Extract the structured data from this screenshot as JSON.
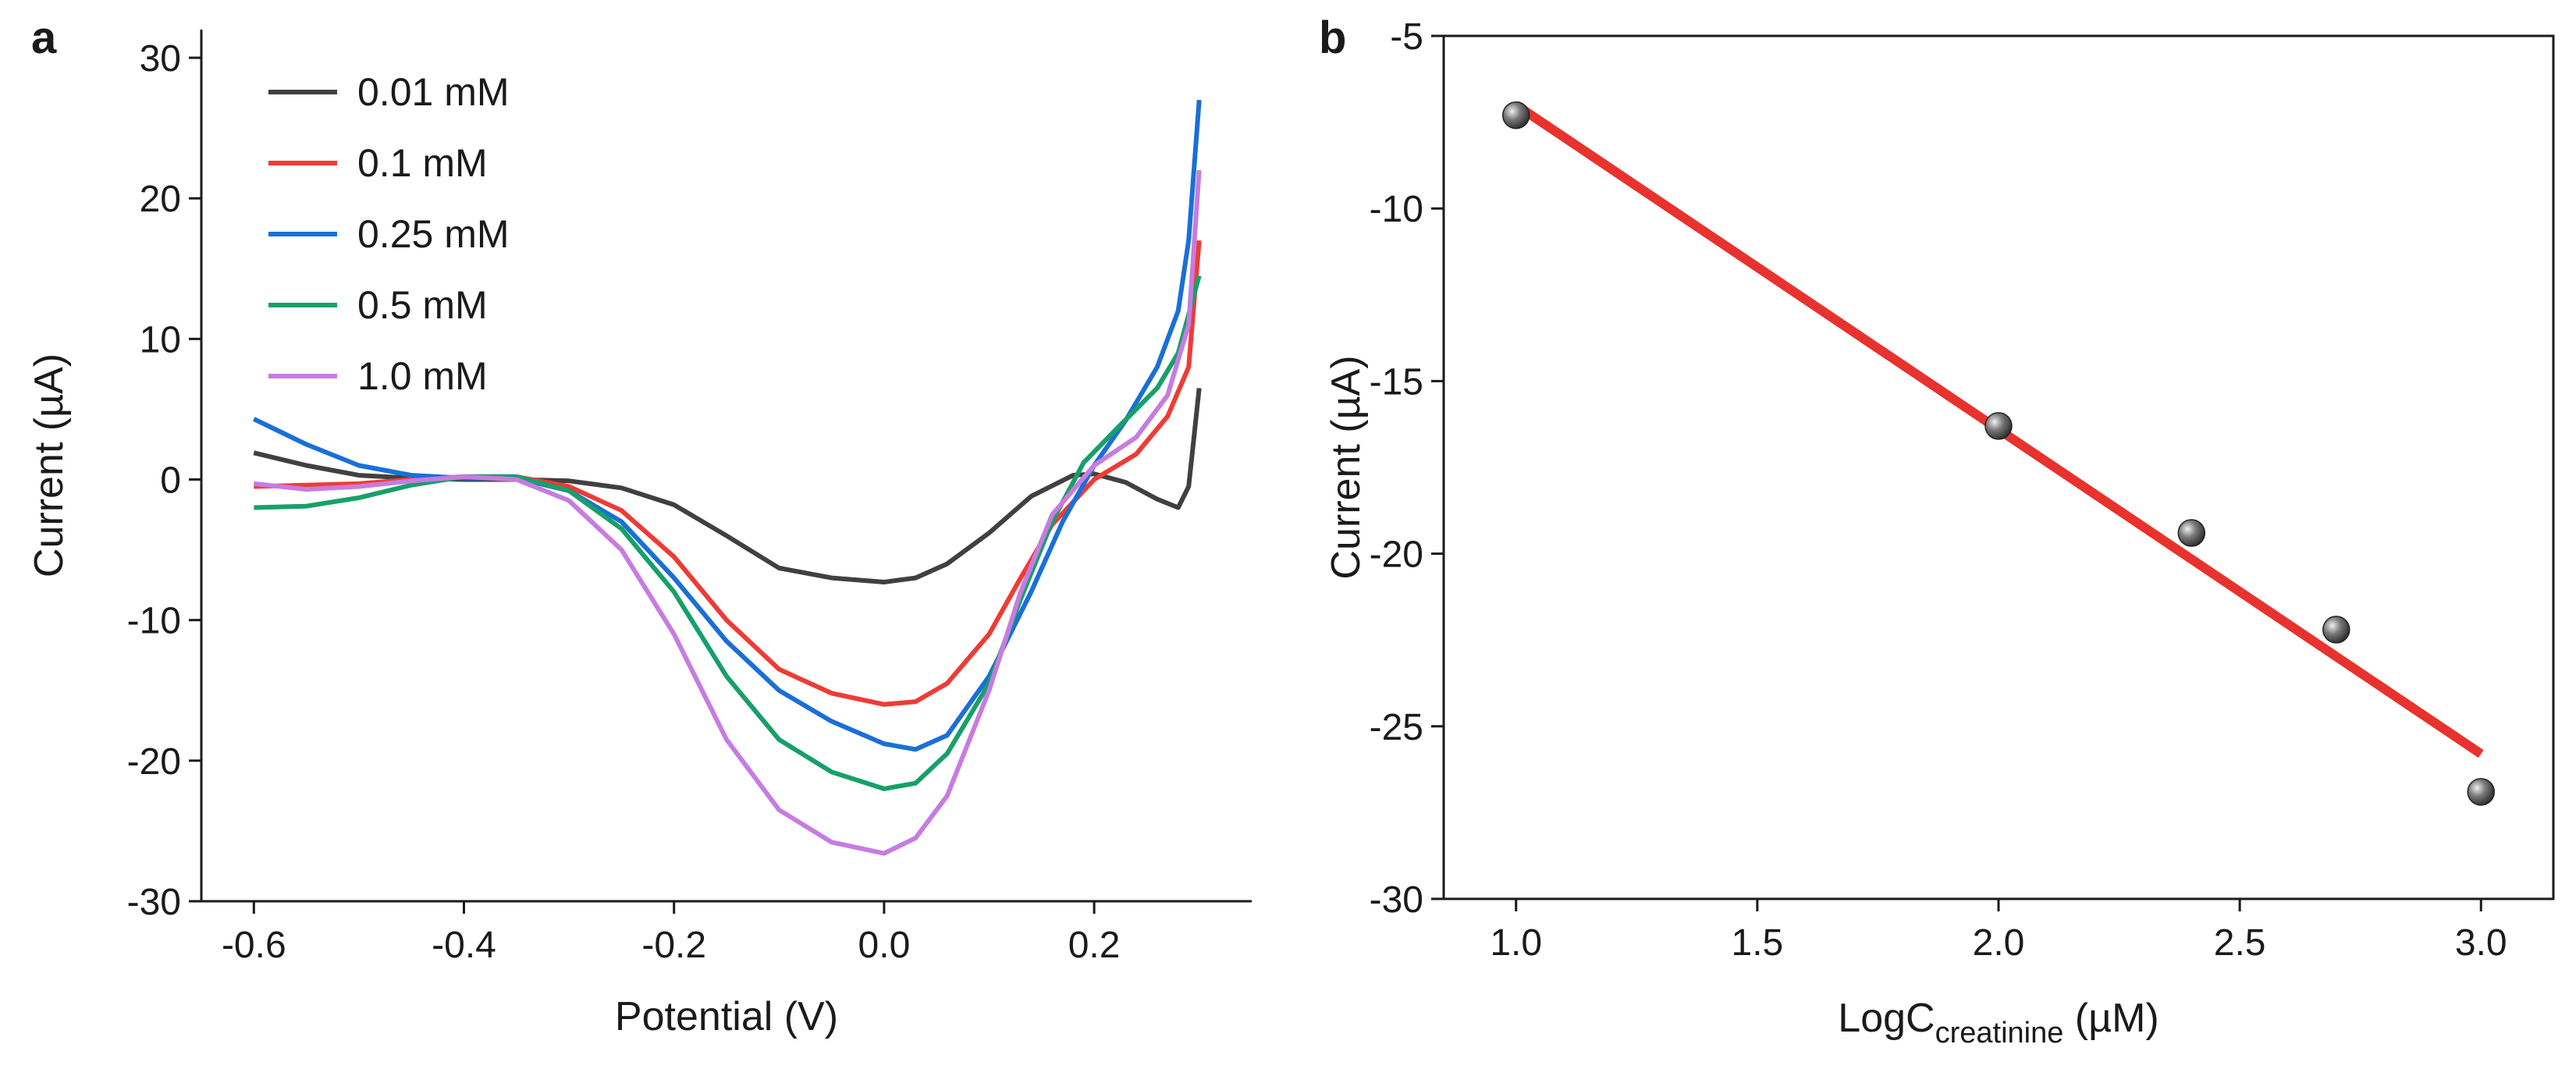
{
  "chart_data": [
    {
      "panel": "a",
      "type": "line",
      "xlabel": "Potential (V)",
      "ylabel": "Current (µA)",
      "xlim": [
        -0.65,
        0.35
      ],
      "ylim": [
        -30,
        32
      ],
      "x_ticks": [
        -0.6,
        -0.4,
        -0.2,
        0.0,
        0.2
      ],
      "x_tick_labels": [
        "-0.6",
        "-0.4",
        "-0.2",
        "0.0",
        "0.2"
      ],
      "y_ticks": [
        -30,
        -20,
        -10,
        0,
        10,
        20,
        30
      ],
      "y_tick_labels": [
        "-30",
        "-20",
        "-10",
        "0",
        "10",
        "20",
        "30"
      ],
      "legend_position": "top-left",
      "series": [
        {
          "name": "0.01 mM",
          "color": "#404040",
          "points": [
            [
              -0.6,
              1.9
            ],
            [
              -0.55,
              1.0
            ],
            [
              -0.5,
              0.3
            ],
            [
              -0.45,
              0.1
            ],
            [
              -0.4,
              0.0
            ],
            [
              -0.35,
              0.0
            ],
            [
              -0.3,
              -0.1
            ],
            [
              -0.25,
              -0.6
            ],
            [
              -0.2,
              -1.8
            ],
            [
              -0.15,
              -4.0
            ],
            [
              -0.1,
              -6.3
            ],
            [
              -0.05,
              -7.0
            ],
            [
              0.0,
              -7.3
            ],
            [
              0.03,
              -7.0
            ],
            [
              0.06,
              -6.0
            ],
            [
              0.1,
              -3.8
            ],
            [
              0.14,
              -1.2
            ],
            [
              0.18,
              0.3
            ],
            [
              0.2,
              0.4
            ],
            [
              0.23,
              -0.2
            ],
            [
              0.26,
              -1.4
            ],
            [
              0.28,
              -2.0
            ],
            [
              0.29,
              -0.5
            ],
            [
              0.295,
              3.0
            ],
            [
              0.3,
              6.5
            ]
          ]
        },
        {
          "name": "0.1 mM",
          "color": "#ef3b36",
          "points": [
            [
              -0.6,
              -0.5
            ],
            [
              -0.55,
              -0.4
            ],
            [
              -0.5,
              -0.3
            ],
            [
              -0.45,
              0.0
            ],
            [
              -0.4,
              0.2
            ],
            [
              -0.35,
              0.2
            ],
            [
              -0.3,
              -0.5
            ],
            [
              -0.25,
              -2.2
            ],
            [
              -0.2,
              -5.5
            ],
            [
              -0.15,
              -10.0
            ],
            [
              -0.1,
              -13.5
            ],
            [
              -0.05,
              -15.2
            ],
            [
              0.0,
              -16.0
            ],
            [
              0.03,
              -15.8
            ],
            [
              0.06,
              -14.5
            ],
            [
              0.1,
              -11.0
            ],
            [
              0.13,
              -7.0
            ],
            [
              0.16,
              -3.2
            ],
            [
              0.2,
              0.0
            ],
            [
              0.24,
              1.8
            ],
            [
              0.27,
              4.5
            ],
            [
              0.29,
              8.0
            ],
            [
              0.3,
              17.0
            ]
          ]
        },
        {
          "name": "0.25 mM",
          "color": "#1a6fd6",
          "points": [
            [
              -0.6,
              4.3
            ],
            [
              -0.55,
              2.5
            ],
            [
              -0.5,
              1.0
            ],
            [
              -0.45,
              0.3
            ],
            [
              -0.4,
              0.1
            ],
            [
              -0.35,
              0.1
            ],
            [
              -0.3,
              -0.8
            ],
            [
              -0.25,
              -3.0
            ],
            [
              -0.2,
              -7.0
            ],
            [
              -0.15,
              -11.5
            ],
            [
              -0.1,
              -15.0
            ],
            [
              -0.05,
              -17.2
            ],
            [
              0.0,
              -18.8
            ],
            [
              0.03,
              -19.2
            ],
            [
              0.06,
              -18.2
            ],
            [
              0.1,
              -14.0
            ],
            [
              0.14,
              -8.0
            ],
            [
              0.17,
              -3.0
            ],
            [
              0.2,
              1.0
            ],
            [
              0.23,
              4.2
            ],
            [
              0.26,
              8.0
            ],
            [
              0.28,
              12.0
            ],
            [
              0.29,
              17.0
            ],
            [
              0.3,
              27.0
            ]
          ]
        },
        {
          "name": "0.5 mM",
          "color": "#17a06a",
          "points": [
            [
              -0.6,
              -2.0
            ],
            [
              -0.55,
              -1.9
            ],
            [
              -0.5,
              -1.3
            ],
            [
              -0.45,
              -0.4
            ],
            [
              -0.4,
              0.2
            ],
            [
              -0.35,
              0.2
            ],
            [
              -0.3,
              -0.8
            ],
            [
              -0.25,
              -3.5
            ],
            [
              -0.2,
              -8.0
            ],
            [
              -0.15,
              -14.0
            ],
            [
              -0.1,
              -18.5
            ],
            [
              -0.05,
              -20.8
            ],
            [
              0.0,
              -22.0
            ],
            [
              0.03,
              -21.6
            ],
            [
              0.06,
              -19.5
            ],
            [
              0.1,
              -14.5
            ],
            [
              0.13,
              -8.5
            ],
            [
              0.16,
              -3.0
            ],
            [
              0.19,
              1.2
            ],
            [
              0.22,
              3.5
            ],
            [
              0.26,
              6.5
            ],
            [
              0.28,
              9.0
            ],
            [
              0.3,
              14.5
            ]
          ]
        },
        {
          "name": "1.0 mM",
          "color": "#c77ce0",
          "points": [
            [
              -0.6,
              -0.3
            ],
            [
              -0.55,
              -0.7
            ],
            [
              -0.5,
              -0.5
            ],
            [
              -0.45,
              -0.1
            ],
            [
              -0.4,
              0.2
            ],
            [
              -0.35,
              0.0
            ],
            [
              -0.3,
              -1.5
            ],
            [
              -0.25,
              -5.0
            ],
            [
              -0.2,
              -11.0
            ],
            [
              -0.15,
              -18.5
            ],
            [
              -0.1,
              -23.5
            ],
            [
              -0.05,
              -25.8
            ],
            [
              0.0,
              -26.6
            ],
            [
              0.03,
              -25.5
            ],
            [
              0.06,
              -22.5
            ],
            [
              0.1,
              -15.0
            ],
            [
              0.13,
              -8.0
            ],
            [
              0.16,
              -2.5
            ],
            [
              0.2,
              1.0
            ],
            [
              0.24,
              3.0
            ],
            [
              0.27,
              6.0
            ],
            [
              0.29,
              11.0
            ],
            [
              0.3,
              22.0
            ]
          ]
        }
      ]
    },
    {
      "panel": "b",
      "type": "scatter",
      "xlabel_main": "LogC",
      "xlabel_sub": "creatinine",
      "xlabel_unit": " (µM)",
      "ylabel": "Current (µA)",
      "xlim": [
        0.85,
        3.15
      ],
      "ylim": [
        -30,
        -5
      ],
      "x_ticks": [
        1.0,
        1.5,
        2.0,
        2.5,
        3.0
      ],
      "x_tick_labels": [
        "1.0",
        "1.5",
        "2.0",
        "2.5",
        "3.0"
      ],
      "y_ticks": [
        -30,
        -25,
        -20,
        -15,
        -10,
        -5
      ],
      "y_tick_labels": [
        "-30",
        "-25",
        "-20",
        "-15",
        "-10",
        "-5"
      ],
      "points": [
        [
          1.0,
          -7.3
        ],
        [
          2.0,
          -16.3
        ],
        [
          2.4,
          -19.4
        ],
        [
          2.7,
          -22.2
        ],
        [
          3.0,
          -26.9
        ]
      ],
      "point_color": "#555555",
      "fit_line": {
        "x": [
          1.0,
          3.0
        ],
        "y": [
          -7.0,
          -25.8
        ],
        "color": "#e8322e"
      }
    }
  ]
}
